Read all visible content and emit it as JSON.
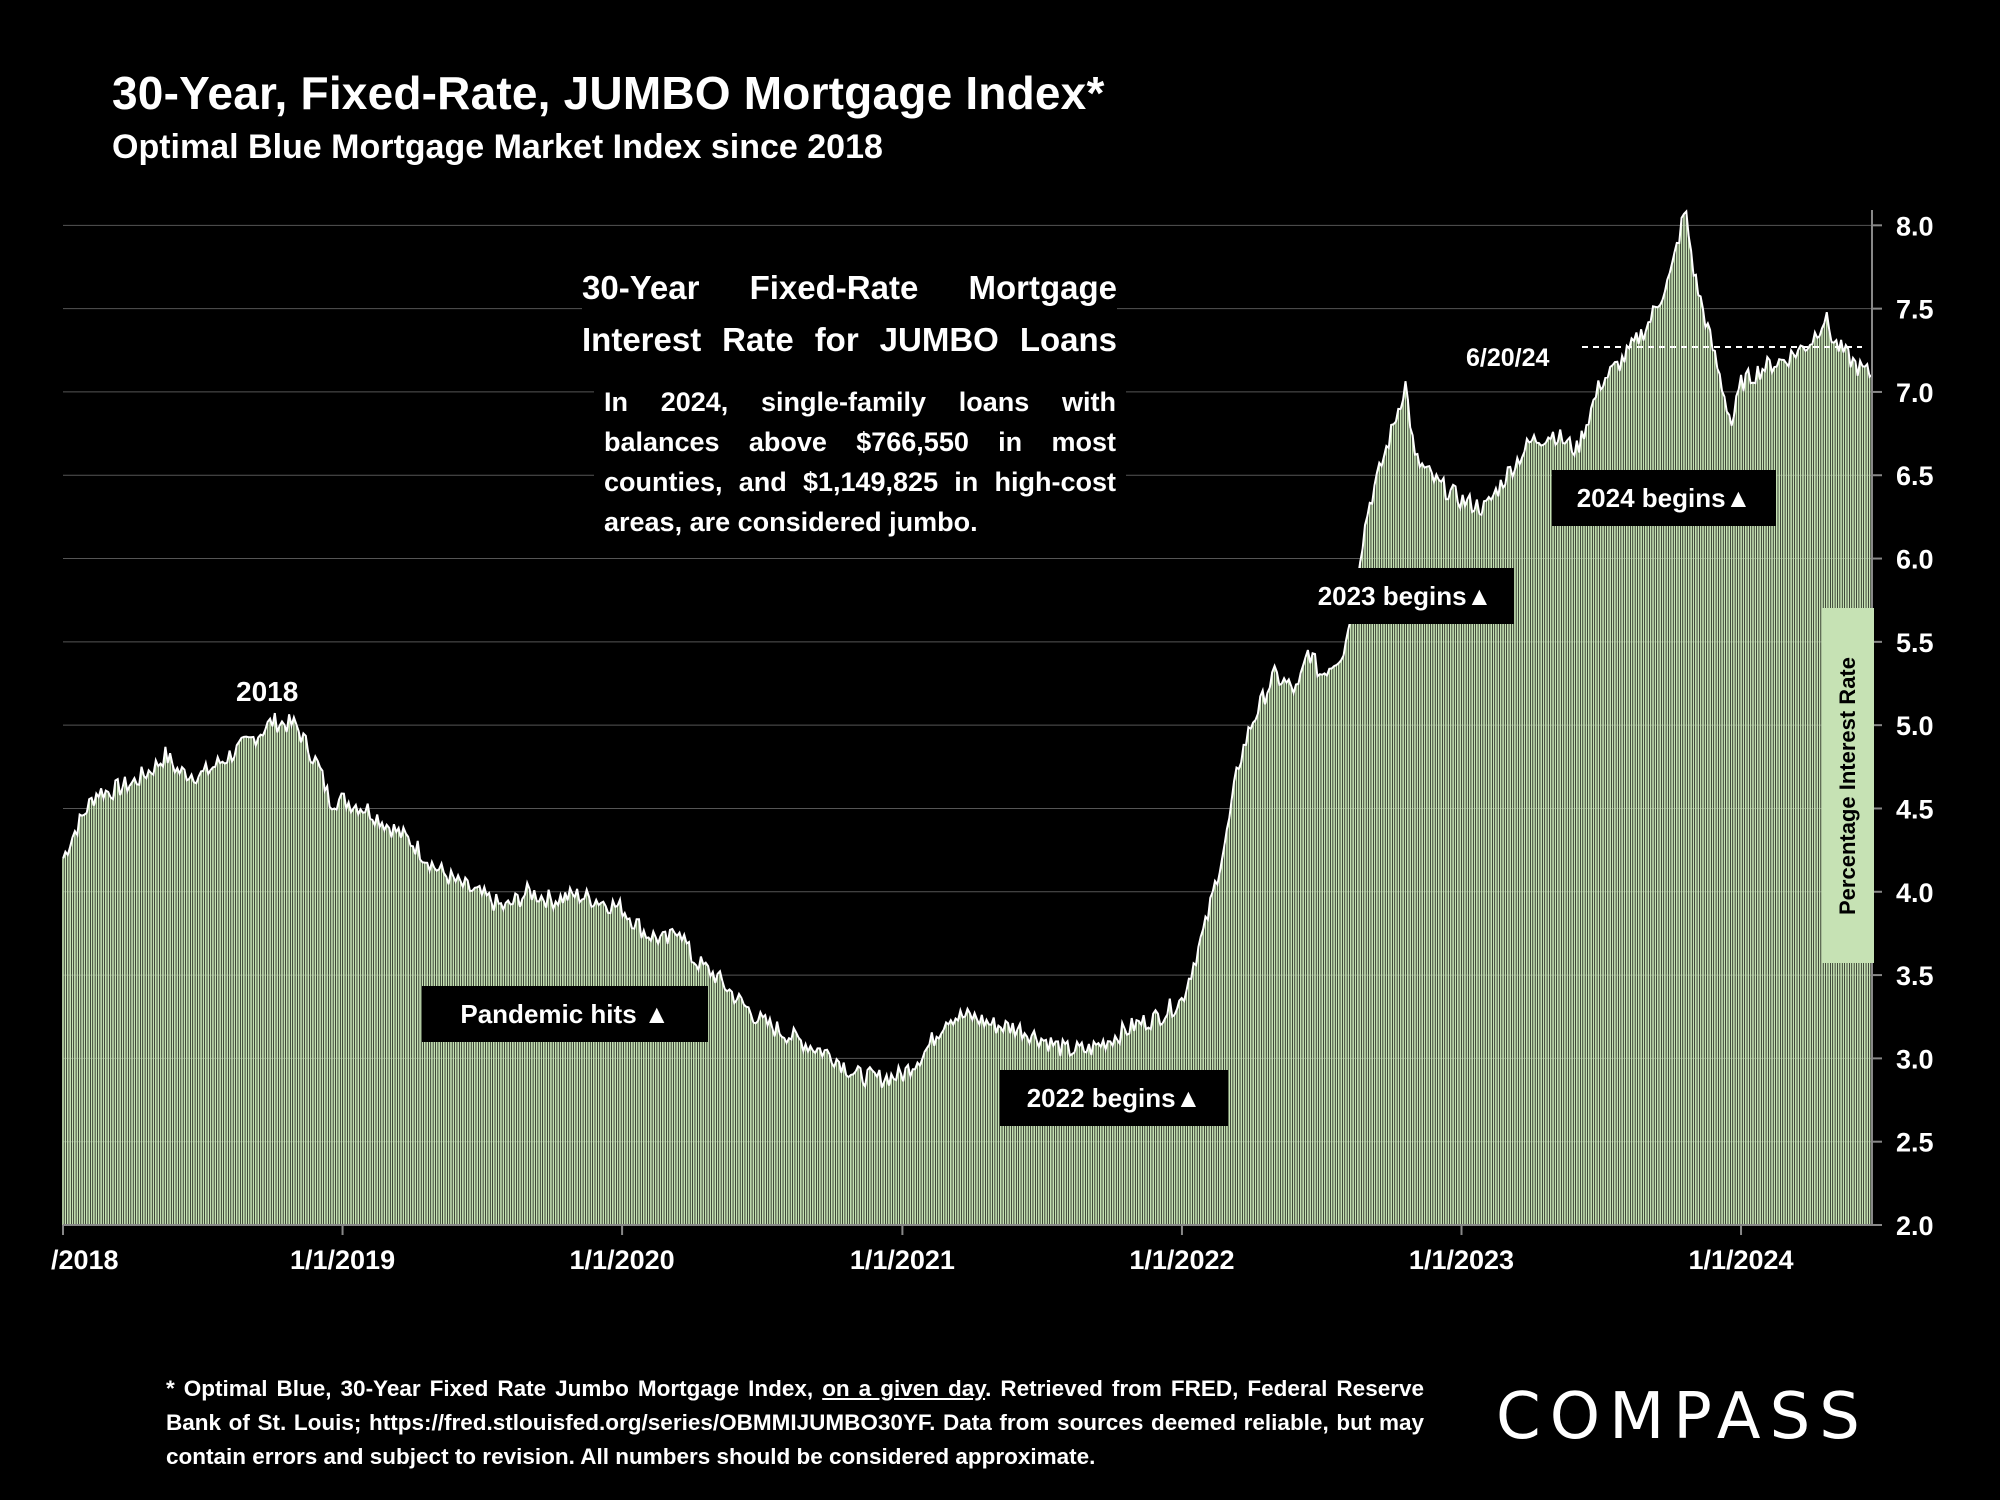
{
  "title": "30-Year, Fixed-Rate, JUMBO Mortgage Index*",
  "subtitle": "Optimal Blue Mortgage Market Index since 2018",
  "callout": {
    "title": "30-Year Fixed-Rate Mortgage Interest Rate for JUMBO Loans",
    "body": "In 2024, single-family loans with balances above $766,550 in most counties, and $1,149,825 in high-cost areas, are considered jumbo."
  },
  "annotations": {
    "label_2018": "2018",
    "pandemic": "Pandemic hits ▲",
    "begins_2022": "2022 begins▲",
    "begins_2023": "2023 begins▲",
    "begins_2024": "2024 begins▲",
    "latest_date": "6/20/24"
  },
  "footnote": {
    "part1": "* Optimal Blue, 30-Year Fixed Rate Jumbo Mortgage Index, ",
    "underlined": "on a given day",
    "part2": ". Retrieved from FRED, Federal Reserve Bank of St. Louis; https://fred.stlouisfed.org/series/OBMMIJUMBO30YF. Data from sources deemed reliable, but may contain errors and subject to revision. All numbers should be considered approximate."
  },
  "logo": "COMPASS",
  "colors": {
    "background": "#000000",
    "bar_fill": "#c6e2b4",
    "line": "#ffffff",
    "grid": "#555555"
  },
  "chart_data": {
    "type": "area",
    "title": "30-Year, Fixed-Rate, JUMBO Mortgage Index*",
    "subtitle": "Optimal Blue Mortgage Market Index since 2018",
    "ylabel": "Percentage Interest Rate",
    "xlabel": "",
    "ylim": [
      2.0,
      8.2
    ],
    "xlim": [
      "2018-01-01",
      "2024-06-20"
    ],
    "yticks": [
      "2.0",
      "2.5",
      "3.0",
      "3.5",
      "4.0",
      "4.5",
      "5.0",
      "5.5",
      "6.0",
      "6.5",
      "7.0",
      "7.5",
      "8.0"
    ],
    "xticks": [
      {
        "date": "2018-01-01",
        "label": "/2018"
      },
      {
        "date": "2019-01-01",
        "label": "1/1/2019"
      },
      {
        "date": "2020-01-01",
        "label": "1/1/2020"
      },
      {
        "date": "2021-01-01",
        "label": "1/1/2021"
      },
      {
        "date": "2022-01-01",
        "label": "1/1/2022"
      },
      {
        "date": "2023-01-01",
        "label": "1/1/2023"
      },
      {
        "date": "2024-01-01",
        "label": "1/1/2024"
      }
    ],
    "grid": true,
    "series": [
      {
        "x": [
          "2018-01-01",
          "2018-01-15",
          "2018-02-01",
          "2018-02-15",
          "2018-03-01",
          "2018-04-01",
          "2018-05-01",
          "2018-05-15",
          "2018-06-01",
          "2018-07-01",
          "2018-08-01",
          "2018-09-01",
          "2018-10-01",
          "2018-11-01",
          "2018-11-15",
          "2018-12-01",
          "2018-12-15",
          "2019-01-01",
          "2019-02-01",
          "2019-03-01",
          "2019-04-01",
          "2019-05-01",
          "2019-06-01",
          "2019-07-01",
          "2019-08-01",
          "2019-09-01",
          "2019-10-01",
          "2019-11-01",
          "2019-12-01",
          "2020-01-01",
          "2020-02-01",
          "2020-03-01",
          "2020-03-15",
          "2020-04-01",
          "2020-05-01",
          "2020-06-01",
          "2020-07-01",
          "2020-08-01",
          "2020-09-01",
          "2020-10-01",
          "2020-11-01",
          "2020-12-01",
          "2021-01-01",
          "2021-02-01",
          "2021-03-01",
          "2021-04-01",
          "2021-05-01",
          "2021-06-01",
          "2021-07-01",
          "2021-08-01",
          "2021-09-01",
          "2021-10-01",
          "2021-11-01",
          "2021-12-01",
          "2022-01-01",
          "2022-02-01",
          "2022-03-01",
          "2022-03-15",
          "2022-04-01",
          "2022-05-01",
          "2022-06-01",
          "2022-06-15",
          "2022-07-01",
          "2022-08-01",
          "2022-09-01",
          "2022-10-01",
          "2022-10-20",
          "2022-11-01",
          "2022-12-01",
          "2023-01-01",
          "2023-02-01",
          "2023-03-01",
          "2023-04-01",
          "2023-05-01",
          "2023-06-01",
          "2023-07-01",
          "2023-08-01",
          "2023-09-01",
          "2023-10-01",
          "2023-10-20",
          "2023-11-01",
          "2023-12-01",
          "2023-12-20",
          "2024-01-01",
          "2024-02-01",
          "2024-03-01",
          "2024-04-01",
          "2024-04-20",
          "2024-05-01",
          "2024-06-01",
          "2024-06-20"
        ],
        "values": [
          4.2,
          4.35,
          4.5,
          4.6,
          4.6,
          4.65,
          4.75,
          4.82,
          4.72,
          4.7,
          4.8,
          4.9,
          5.02,
          5.0,
          4.88,
          4.75,
          4.55,
          4.55,
          4.5,
          4.4,
          4.3,
          4.15,
          4.05,
          3.98,
          3.9,
          4.0,
          3.95,
          3.98,
          3.95,
          3.9,
          3.75,
          3.7,
          3.8,
          3.6,
          3.5,
          3.35,
          3.22,
          3.15,
          3.08,
          3.02,
          2.9,
          2.88,
          2.9,
          3.05,
          3.25,
          3.25,
          3.2,
          3.18,
          3.12,
          3.05,
          3.05,
          3.12,
          3.2,
          3.25,
          3.35,
          3.8,
          4.35,
          4.75,
          5.0,
          5.3,
          5.2,
          5.45,
          5.3,
          5.45,
          6.3,
          6.75,
          7.05,
          6.6,
          6.45,
          6.35,
          6.3,
          6.5,
          6.7,
          6.75,
          6.65,
          7.05,
          7.2,
          7.4,
          7.7,
          8.1,
          7.7,
          7.15,
          6.8,
          7.05,
          7.15,
          7.2,
          7.3,
          7.45,
          7.3,
          7.15,
          7.1
        ]
      }
    ]
  }
}
